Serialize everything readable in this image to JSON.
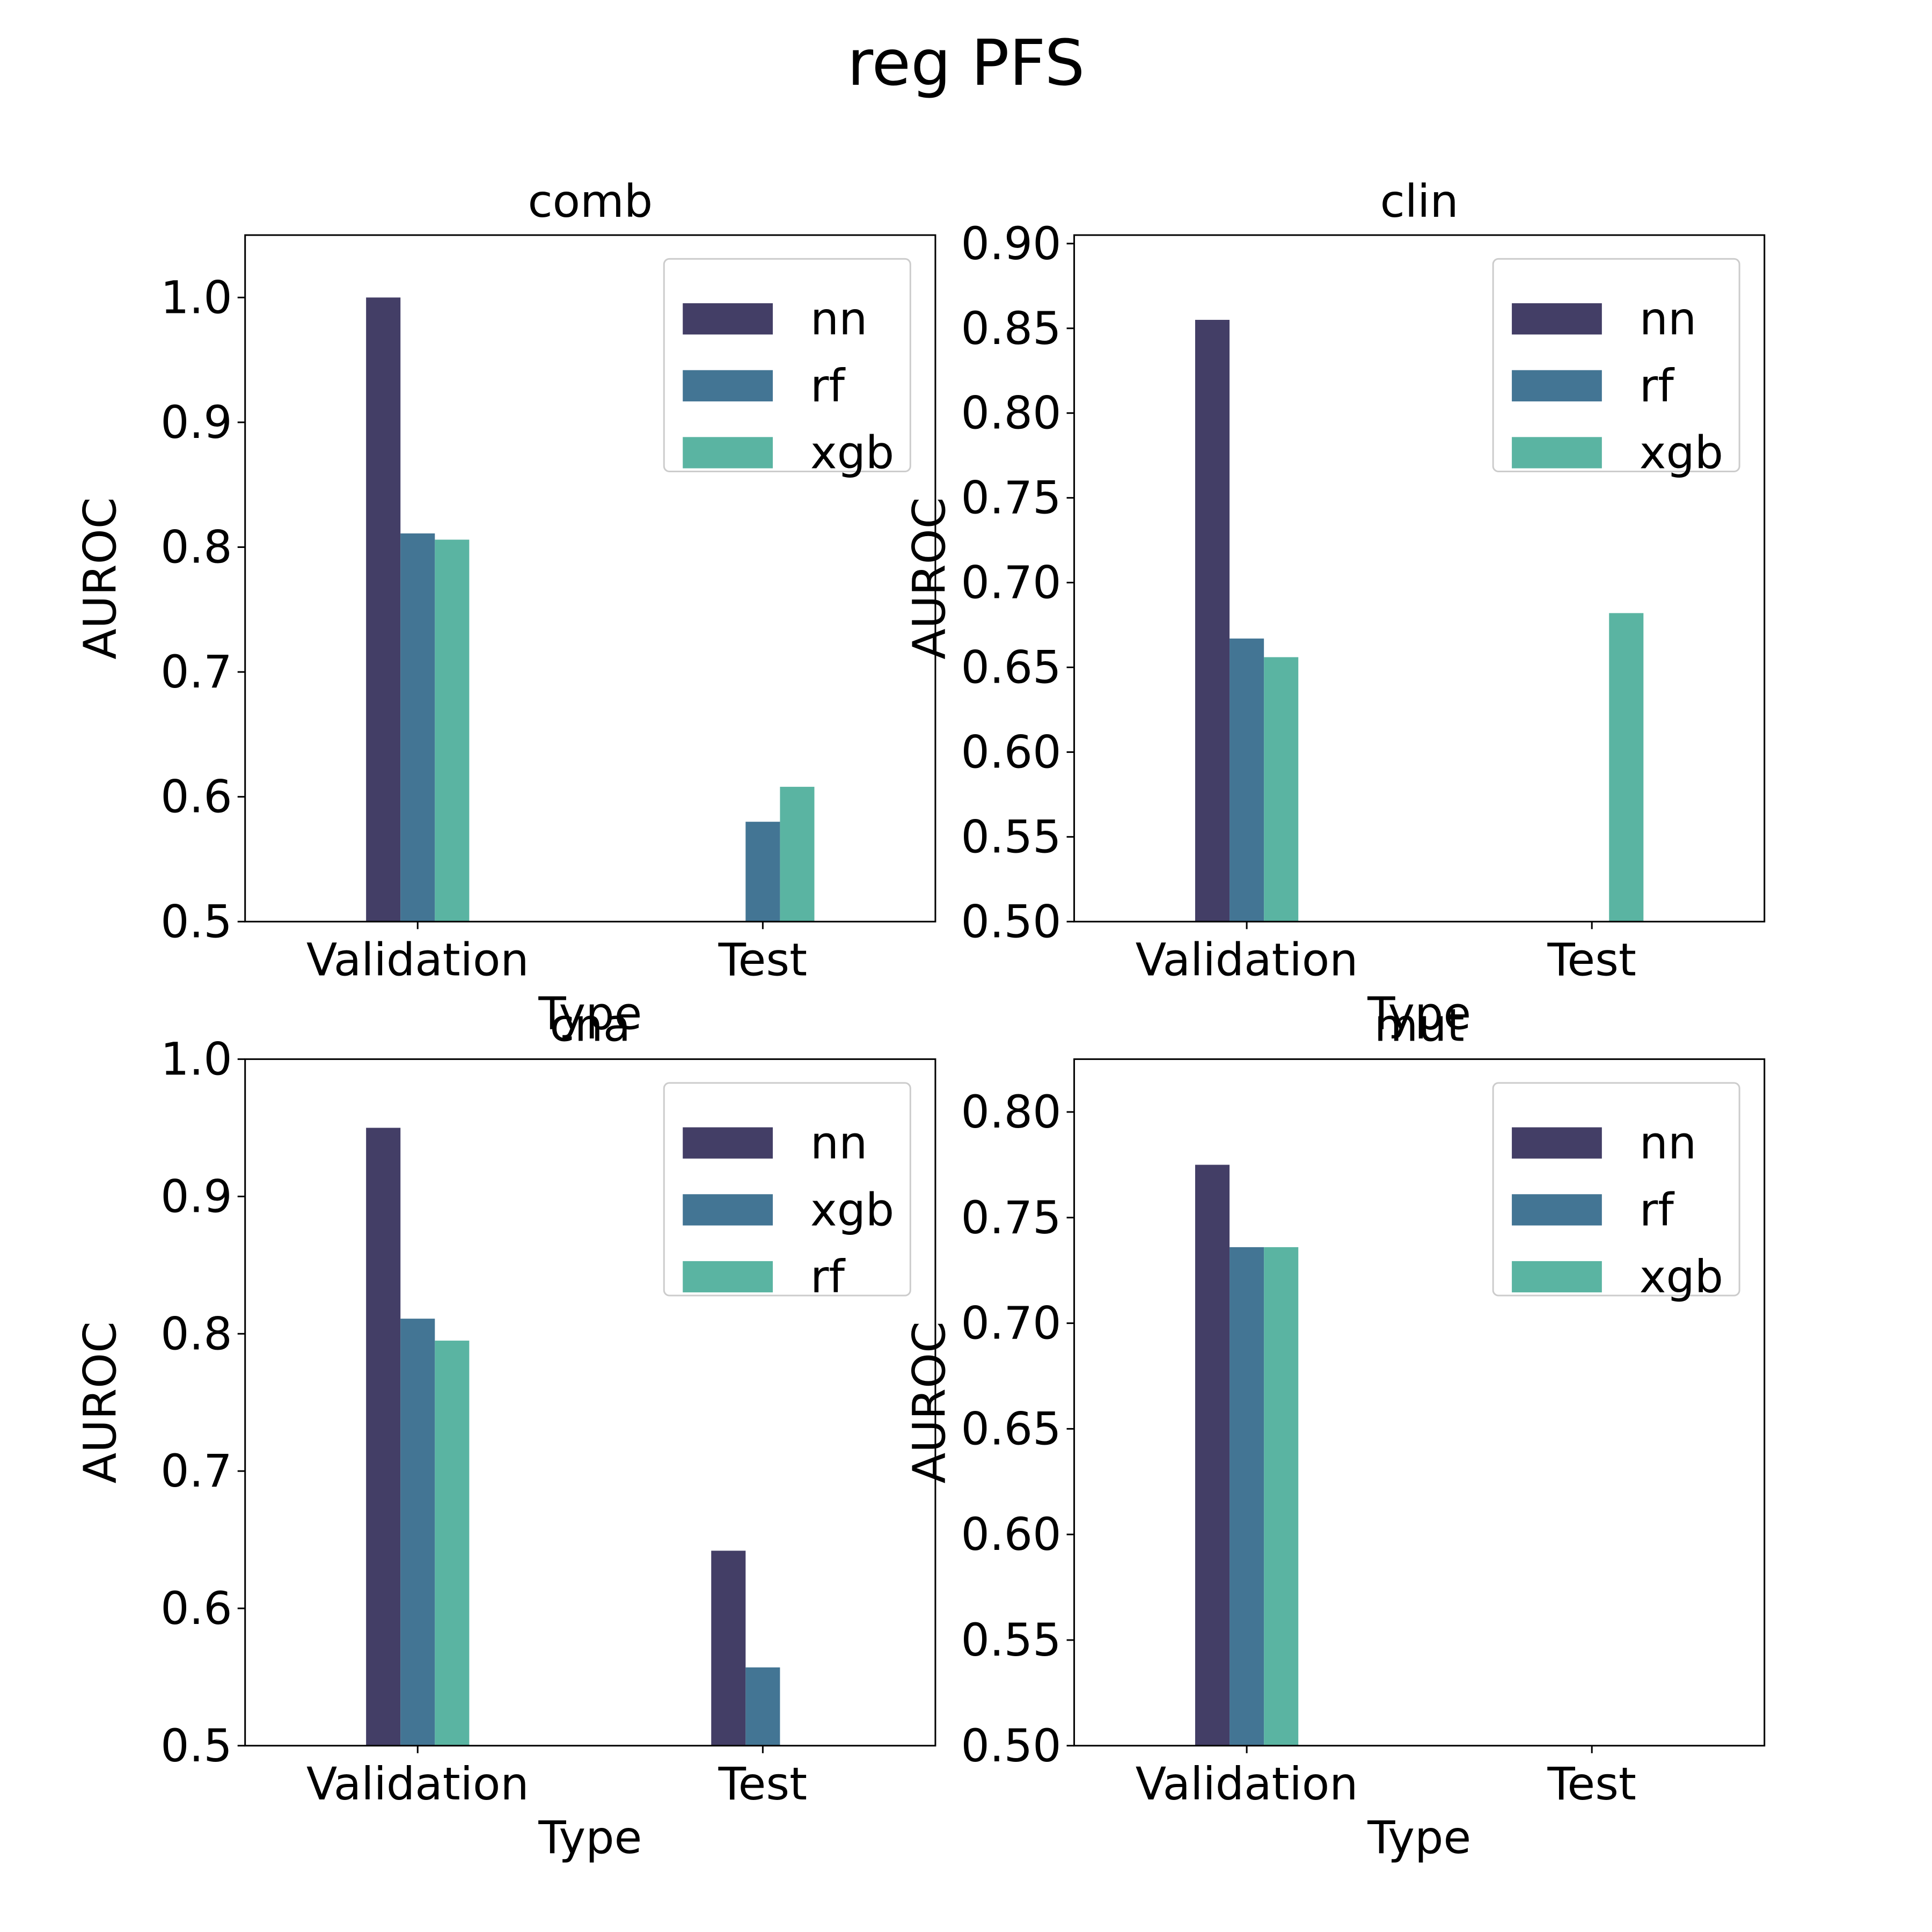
{
  "figure": {
    "title": "reg PFS"
  },
  "colors": {
    "nn": "#433e66",
    "rf": "#437594",
    "xgb": "#5ab4a2"
  },
  "chart_data": [
    {
      "type": "bar",
      "title": "comb",
      "xlabel": "Type",
      "ylabel": "AUROC",
      "categories": [
        "Validation",
        "Test"
      ],
      "ylim": [
        0.5,
        1.05
      ],
      "yticks": [
        0.5,
        0.6,
        0.7,
        0.8,
        0.9,
        1.0
      ],
      "ytick_labels": [
        "0.5",
        "0.6",
        "0.7",
        "0.8",
        "0.9",
        "1.0"
      ],
      "legend_position": "top-right",
      "series": [
        {
          "name": "nn",
          "color": "#433e66",
          "values": [
            1.0,
            null
          ]
        },
        {
          "name": "rf",
          "color": "#437594",
          "values": [
            0.811,
            0.58
          ]
        },
        {
          "name": "xgb",
          "color": "#5ab4a2",
          "values": [
            0.806,
            0.608
          ]
        }
      ]
    },
    {
      "type": "bar",
      "title": "clin",
      "xlabel": "Type",
      "ylabel": "AUROC",
      "categories": [
        "Validation",
        "Test"
      ],
      "ylim": [
        0.5,
        0.905
      ],
      "yticks": [
        0.5,
        0.55,
        0.6,
        0.65,
        0.7,
        0.75,
        0.8,
        0.85,
        0.9
      ],
      "ytick_labels": [
        "0.50",
        "0.55",
        "0.60",
        "0.65",
        "0.70",
        "0.75",
        "0.80",
        "0.85",
        "0.90"
      ],
      "legend_position": "top-right",
      "series": [
        {
          "name": "nn",
          "color": "#433e66",
          "values": [
            0.855,
            null
          ]
        },
        {
          "name": "rf",
          "color": "#437594",
          "values": [
            0.667,
            null
          ]
        },
        {
          "name": "xgb",
          "color": "#5ab4a2",
          "values": [
            0.656,
            0.682
          ]
        }
      ]
    },
    {
      "type": "bar",
      "title": "cna",
      "xlabel": "Type",
      "ylabel": "AUROC",
      "categories": [
        "Validation",
        "Test"
      ],
      "ylim": [
        0.5,
        1.0
      ],
      "yticks": [
        0.5,
        0.6,
        0.7,
        0.8,
        0.9,
        1.0
      ],
      "ytick_labels": [
        "0.5",
        "0.6",
        "0.7",
        "0.8",
        "0.9",
        "1.0"
      ],
      "legend_position": "top-right",
      "series": [
        {
          "name": "nn",
          "color": "#433e66",
          "values": [
            0.95,
            0.642
          ]
        },
        {
          "name": "xgb",
          "color": "#437594",
          "values": [
            0.811,
            0.557
          ]
        },
        {
          "name": "rf",
          "color": "#5ab4a2",
          "values": [
            0.795,
            null
          ]
        }
      ]
    },
    {
      "type": "bar",
      "title": "mut",
      "xlabel": "Type",
      "ylabel": "AUROC",
      "categories": [
        "Validation",
        "Test"
      ],
      "ylim": [
        0.5,
        0.825
      ],
      "yticks": [
        0.5,
        0.55,
        0.6,
        0.65,
        0.7,
        0.75,
        0.8
      ],
      "ytick_labels": [
        "0.50",
        "0.55",
        "0.60",
        "0.65",
        "0.70",
        "0.75",
        "0.80"
      ],
      "legend_position": "top-right",
      "series": [
        {
          "name": "nn",
          "color": "#433e66",
          "values": [
            0.775,
            null
          ]
        },
        {
          "name": "rf",
          "color": "#437594",
          "values": [
            0.736,
            null
          ]
        },
        {
          "name": "xgb",
          "color": "#5ab4a2",
          "values": [
            0.736,
            null
          ]
        }
      ]
    }
  ]
}
